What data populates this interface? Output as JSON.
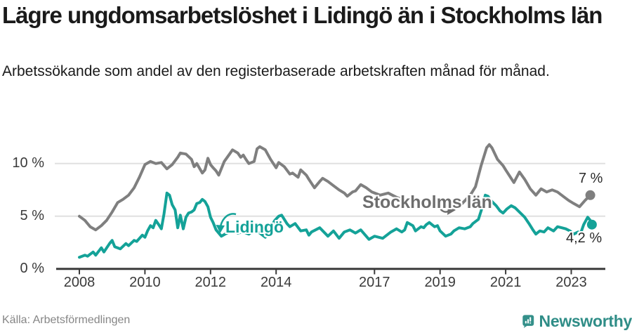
{
  "header": {
    "title": "Lägre ungdomsarbetslöshet i Lidingö än i Stockholms län",
    "subtitle": "Arbetssökande som andel av den registerbaserade arbetskraften månad för månad."
  },
  "footer": {
    "source": "Källa: Arbetsförmedlingen",
    "brand": "Newsworthy"
  },
  "colors": {
    "lidingo": "#14a298",
    "stockholm": "#7f7f7f",
    "grid": "#e0e0e0",
    "axis": "#3b3b3b",
    "brand_teal": "#34908a"
  },
  "chart_data": {
    "type": "line",
    "title": "Lägre ungdomsarbetslöshet i Lidingö än i Stockholms län",
    "xlabel": "",
    "ylabel": "Arbetssökande som andel av den registerbaserade arbetskraften",
    "grid": "horizontal",
    "legend_position": "inline-labels",
    "x_range": [
      2008,
      2023.7
    ],
    "ylim": [
      0,
      12
    ],
    "y_axis": {
      "unit": "%",
      "ticks": [
        {
          "label": "0 %",
          "v": 0
        },
        {
          "label": "5 %",
          "v": 5
        },
        {
          "label": "10 %",
          "v": 10
        }
      ]
    },
    "x_axis": {
      "ticks": [
        {
          "label": "2008",
          "t": 2008
        },
        {
          "label": "2010",
          "t": 2010
        },
        {
          "label": "2012",
          "t": 2012
        },
        {
          "label": "2014",
          "t": 2014
        },
        {
          "label": "2017",
          "t": 2017
        },
        {
          "label": "2019",
          "t": 2019
        },
        {
          "label": "2021",
          "t": 2021
        },
        {
          "label": "2023",
          "t": 2023
        }
      ]
    },
    "series": [
      {
        "name": "Stockholms län",
        "color": "#7f7f7f",
        "end_label": "7 %",
        "end_value": 7.0,
        "data": [
          [
            2008.0,
            5.0
          ],
          [
            2008.17,
            4.6
          ],
          [
            2008.33,
            4.0
          ],
          [
            2008.5,
            3.7
          ],
          [
            2008.67,
            4.1
          ],
          [
            2008.83,
            4.6
          ],
          [
            2009.0,
            5.4
          ],
          [
            2009.17,
            6.3
          ],
          [
            2009.33,
            6.6
          ],
          [
            2009.5,
            7.0
          ],
          [
            2009.67,
            7.7
          ],
          [
            2009.83,
            8.7
          ],
          [
            2010.0,
            9.9
          ],
          [
            2010.17,
            10.2
          ],
          [
            2010.33,
            10.0
          ],
          [
            2010.5,
            10.1
          ],
          [
            2010.67,
            9.5
          ],
          [
            2010.83,
            9.9
          ],
          [
            2011.0,
            10.6
          ],
          [
            2011.08,
            11.0
          ],
          [
            2011.25,
            10.9
          ],
          [
            2011.42,
            10.4
          ],
          [
            2011.5,
            9.7
          ],
          [
            2011.58,
            10.0
          ],
          [
            2011.75,
            9.1
          ],
          [
            2011.83,
            9.4
          ],
          [
            2011.92,
            10.5
          ],
          [
            2012.0,
            9.9
          ],
          [
            2012.08,
            9.6
          ],
          [
            2012.17,
            9.3
          ],
          [
            2012.25,
            8.9
          ],
          [
            2012.42,
            10.2
          ],
          [
            2012.58,
            10.9
          ],
          [
            2012.67,
            11.3
          ],
          [
            2012.83,
            11.0
          ],
          [
            2012.92,
            10.6
          ],
          [
            2013.0,
            10.8
          ],
          [
            2013.08,
            10.4
          ],
          [
            2013.17,
            10.0
          ],
          [
            2013.33,
            10.2
          ],
          [
            2013.42,
            11.4
          ],
          [
            2013.5,
            11.6
          ],
          [
            2013.67,
            11.3
          ],
          [
            2013.83,
            10.4
          ],
          [
            2014.0,
            9.6
          ],
          [
            2014.08,
            10.1
          ],
          [
            2014.25,
            9.7
          ],
          [
            2014.42,
            9.0
          ],
          [
            2014.5,
            9.1
          ],
          [
            2014.67,
            8.7
          ],
          [
            2014.75,
            9.4
          ],
          [
            2014.92,
            8.9
          ],
          [
            2015.0,
            8.5
          ],
          [
            2015.17,
            7.7
          ],
          [
            2015.33,
            8.3
          ],
          [
            2015.42,
            8.6
          ],
          [
            2015.58,
            8.3
          ],
          [
            2015.75,
            7.9
          ],
          [
            2015.92,
            7.5
          ],
          [
            2016.08,
            7.2
          ],
          [
            2016.17,
            6.9
          ],
          [
            2016.33,
            7.3
          ],
          [
            2016.42,
            7.4
          ],
          [
            2016.58,
            8.0
          ],
          [
            2016.75,
            7.7
          ],
          [
            2016.92,
            7.3
          ],
          [
            2017.17,
            7.0
          ],
          [
            2017.42,
            7.2
          ],
          [
            2017.67,
            6.8
          ],
          [
            2017.92,
            6.5
          ],
          [
            2018.17,
            6.6
          ],
          [
            2018.42,
            6.4
          ],
          [
            2018.67,
            6.5
          ],
          [
            2018.92,
            6.1
          ],
          [
            2019.17,
            6.0
          ],
          [
            2019.42,
            5.9
          ],
          [
            2019.67,
            6.2
          ],
          [
            2019.92,
            7.0
          ],
          [
            2020.08,
            7.8
          ],
          [
            2020.25,
            9.8
          ],
          [
            2020.42,
            11.5
          ],
          [
            2020.5,
            11.8
          ],
          [
            2020.58,
            11.5
          ],
          [
            2020.75,
            10.4
          ],
          [
            2020.92,
            9.8
          ],
          [
            2021.0,
            9.4
          ],
          [
            2021.25,
            8.2
          ],
          [
            2021.42,
            9.2
          ],
          [
            2021.58,
            8.5
          ],
          [
            2021.75,
            7.6
          ],
          [
            2021.92,
            7.0
          ],
          [
            2022.08,
            7.6
          ],
          [
            2022.25,
            7.3
          ],
          [
            2022.42,
            7.5
          ],
          [
            2022.58,
            7.3
          ],
          [
            2022.75,
            6.9
          ],
          [
            2022.92,
            6.5
          ],
          [
            2023.08,
            6.2
          ],
          [
            2023.25,
            5.9
          ],
          [
            2023.42,
            6.5
          ],
          [
            2023.58,
            7.0
          ]
        ]
      },
      {
        "name": "Lidingö",
        "color": "#14a298",
        "end_label": "4,2 %",
        "end_value": 4.2,
        "data": [
          [
            2008.0,
            1.1
          ],
          [
            2008.17,
            1.3
          ],
          [
            2008.25,
            1.2
          ],
          [
            2008.42,
            1.6
          ],
          [
            2008.5,
            1.3
          ],
          [
            2008.67,
            2.0
          ],
          [
            2008.75,
            1.6
          ],
          [
            2008.92,
            2.4
          ],
          [
            2009.0,
            2.7
          ],
          [
            2009.08,
            2.1
          ],
          [
            2009.25,
            1.9
          ],
          [
            2009.42,
            2.4
          ],
          [
            2009.5,
            2.2
          ],
          [
            2009.67,
            2.7
          ],
          [
            2009.75,
            2.6
          ],
          [
            2009.92,
            3.2
          ],
          [
            2010.0,
            3.0
          ],
          [
            2010.08,
            3.6
          ],
          [
            2010.17,
            4.1
          ],
          [
            2010.25,
            3.9
          ],
          [
            2010.33,
            4.6
          ],
          [
            2010.42,
            4.2
          ],
          [
            2010.5,
            3.8
          ],
          [
            2010.58,
            5.2
          ],
          [
            2010.67,
            7.2
          ],
          [
            2010.75,
            7.0
          ],
          [
            2010.83,
            6.1
          ],
          [
            2010.92,
            5.6
          ],
          [
            2011.0,
            3.9
          ],
          [
            2011.08,
            5.1
          ],
          [
            2011.17,
            3.8
          ],
          [
            2011.25,
            4.9
          ],
          [
            2011.33,
            5.3
          ],
          [
            2011.42,
            5.4
          ],
          [
            2011.5,
            5.6
          ],
          [
            2011.58,
            6.2
          ],
          [
            2011.67,
            6.3
          ],
          [
            2011.75,
            6.6
          ],
          [
            2011.83,
            6.4
          ],
          [
            2011.92,
            5.9
          ],
          [
            2012.0,
            4.9
          ],
          [
            2012.08,
            4.4
          ],
          [
            2012.17,
            3.7
          ],
          [
            2012.33,
            3.1
          ],
          [
            2012.5,
            3.4
          ],
          [
            2012.67,
            3.6
          ],
          [
            2012.83,
            3.4
          ],
          [
            2013.0,
            3.5
          ],
          [
            2013.17,
            3.3
          ],
          [
            2013.33,
            3.7
          ],
          [
            2013.5,
            3.4
          ],
          [
            2013.67,
            3.0
          ],
          [
            2013.83,
            3.9
          ],
          [
            2013.96,
            4.6
          ],
          [
            2014.08,
            5.0
          ],
          [
            2014.17,
            5.1
          ],
          [
            2014.33,
            4.3
          ],
          [
            2014.42,
            4.0
          ],
          [
            2014.58,
            4.3
          ],
          [
            2014.75,
            3.6
          ],
          [
            2014.92,
            3.7
          ],
          [
            2015.0,
            3.2
          ],
          [
            2015.08,
            3.5
          ],
          [
            2015.33,
            3.9
          ],
          [
            2015.58,
            3.1
          ],
          [
            2015.75,
            3.6
          ],
          [
            2015.92,
            2.9
          ],
          [
            2016.08,
            3.5
          ],
          [
            2016.25,
            3.7
          ],
          [
            2016.42,
            3.4
          ],
          [
            2016.58,
            3.7
          ],
          [
            2016.83,
            2.8
          ],
          [
            2017.0,
            3.1
          ],
          [
            2017.25,
            2.9
          ],
          [
            2017.5,
            3.5
          ],
          [
            2017.67,
            3.8
          ],
          [
            2017.83,
            3.5
          ],
          [
            2017.92,
            3.7
          ],
          [
            2018.0,
            4.4
          ],
          [
            2018.17,
            4.1
          ],
          [
            2018.25,
            3.6
          ],
          [
            2018.42,
            4.0
          ],
          [
            2018.5,
            3.9
          ],
          [
            2018.58,
            4.2
          ],
          [
            2018.67,
            4.4
          ],
          [
            2018.83,
            4.0
          ],
          [
            2018.92,
            4.1
          ],
          [
            2019.0,
            3.6
          ],
          [
            2019.17,
            3.1
          ],
          [
            2019.33,
            3.3
          ],
          [
            2019.42,
            3.6
          ],
          [
            2019.58,
            3.9
          ],
          [
            2019.75,
            3.8
          ],
          [
            2019.92,
            4.0
          ],
          [
            2020.0,
            4.3
          ],
          [
            2020.17,
            4.7
          ],
          [
            2020.25,
            5.5
          ],
          [
            2020.38,
            7.0
          ],
          [
            2020.46,
            6.9
          ],
          [
            2020.58,
            6.4
          ],
          [
            2020.71,
            6.0
          ],
          [
            2020.83,
            5.5
          ],
          [
            2020.92,
            5.3
          ],
          [
            2021.04,
            5.7
          ],
          [
            2021.17,
            6.0
          ],
          [
            2021.29,
            5.8
          ],
          [
            2021.42,
            5.4
          ],
          [
            2021.58,
            4.9
          ],
          [
            2021.71,
            4.3
          ],
          [
            2021.83,
            3.7
          ],
          [
            2021.92,
            3.3
          ],
          [
            2022.04,
            3.6
          ],
          [
            2022.17,
            3.5
          ],
          [
            2022.29,
            3.9
          ],
          [
            2022.46,
            3.6
          ],
          [
            2022.58,
            4.0
          ],
          [
            2022.71,
            3.9
          ],
          [
            2022.83,
            3.8
          ],
          [
            2022.96,
            3.6
          ],
          [
            2023.08,
            3.3
          ],
          [
            2023.21,
            3.5
          ],
          [
            2023.29,
            3.4
          ],
          [
            2023.38,
            4.2
          ],
          [
            2023.5,
            4.9
          ],
          [
            2023.58,
            4.6
          ],
          [
            2023.63,
            4.2
          ]
        ]
      }
    ]
  }
}
